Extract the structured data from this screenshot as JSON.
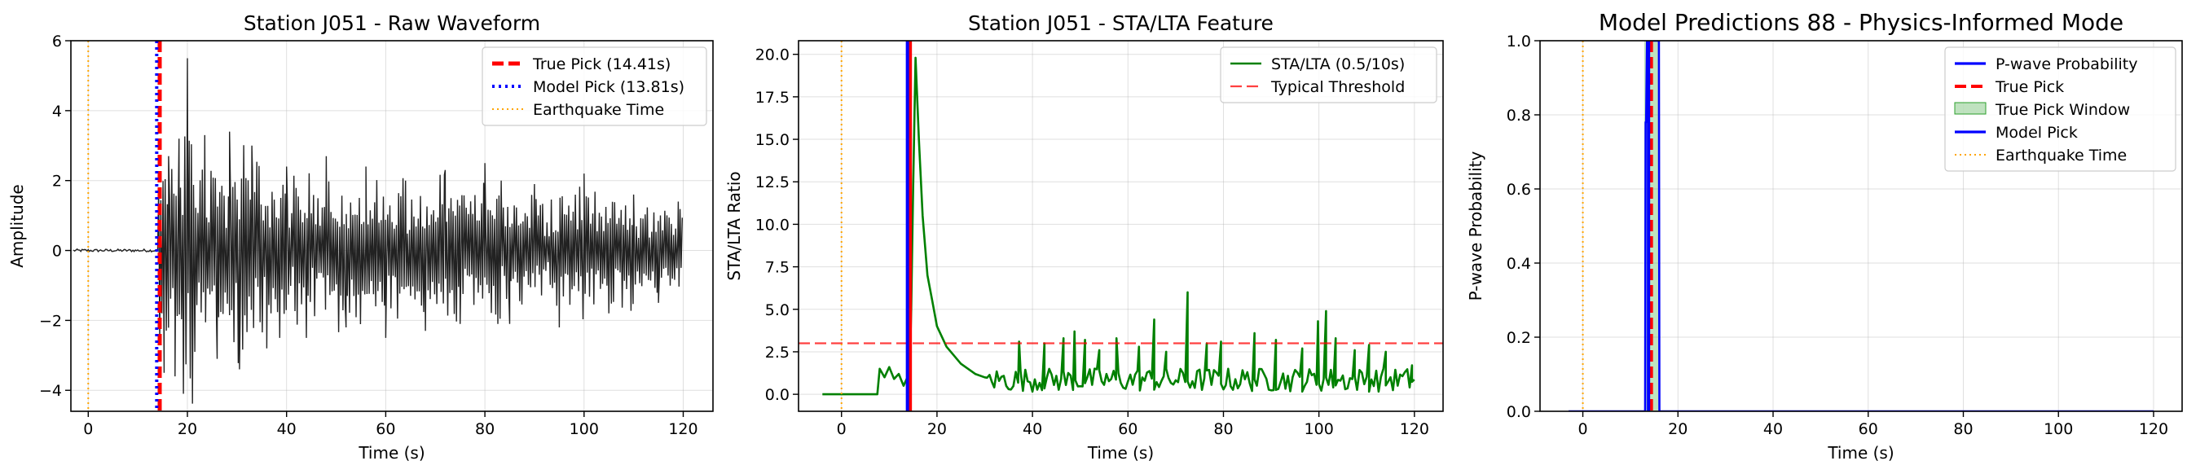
{
  "chart_data": [
    {
      "type": "line",
      "title": "Station J051 - Raw Waveform",
      "xlabel": "Time (s)",
      "ylabel": "Amplitude",
      "xlim": [
        -3.5,
        126
      ],
      "ylim": [
        -4.6,
        6
      ],
      "xticks": [
        0,
        20,
        40,
        60,
        80,
        100,
        120
      ],
      "yticks": [
        -4,
        -2,
        0,
        2,
        4,
        6
      ],
      "xtick_labels": [
        "0",
        "20",
        "40",
        "60",
        "80",
        "100",
        "120"
      ],
      "ytick_labels": [
        "−4",
        "−2",
        "0",
        "2",
        "4",
        "6"
      ],
      "grid": true,
      "legend_position": "top-right",
      "waveform": {
        "name": "",
        "color": "#222222",
        "t_start": -3,
        "t_end": 120,
        "onset": 14.2,
        "noise_amplitude": 0.04,
        "peaks": [
          [
            15.3,
            -3.5
          ],
          [
            16.2,
            2.7
          ],
          [
            17.5,
            -3.6
          ],
          [
            18.3,
            3.2
          ],
          [
            19.2,
            -4.1
          ],
          [
            20.0,
            5.5
          ],
          [
            21.5,
            -2.9
          ],
          [
            23.5,
            3.3
          ],
          [
            26.0,
            -3.1
          ],
          [
            28.5,
            3.4
          ],
          [
            30.5,
            -3.4
          ],
          [
            33.0,
            3.0
          ],
          [
            36.0,
            -2.8
          ],
          [
            40.0,
            2.4
          ],
          [
            44.0,
            -2.5
          ],
          [
            48.0,
            2.7
          ],
          [
            52.0,
            -2.2
          ],
          [
            56.0,
            2.4
          ],
          [
            60.0,
            -2.5
          ],
          [
            64.0,
            2.0
          ],
          [
            68.0,
            -2.3
          ],
          [
            72.0,
            2.3
          ],
          [
            75.0,
            -2.1
          ],
          [
            80.0,
            2.5
          ],
          [
            85.0,
            -2.1
          ],
          [
            90.0,
            1.9
          ],
          [
            95.0,
            -2.2
          ],
          [
            100.0,
            2.2
          ],
          [
            105.0,
            -1.8
          ],
          [
            110.0,
            1.6
          ],
          [
            115.0,
            -1.5
          ],
          [
            119.0,
            1.4
          ]
        ]
      },
      "vlines": [
        {
          "name": "True Pick (14.41s)",
          "x": 14.41,
          "color": "#ff0000",
          "style": "dashed",
          "width": 5
        },
        {
          "name": "Model Pick (13.81s)",
          "x": 13.81,
          "color": "#0000ff",
          "style": "dotted",
          "width": 4
        },
        {
          "name": "Earthquake Time",
          "x": 0.0,
          "color": "#ffa500",
          "style": "dotted-fine",
          "width": 2
        }
      ]
    },
    {
      "type": "line",
      "title": "Station J051 - STA/LTA Feature",
      "xlabel": "Time (s)",
      "ylabel": "STA/LTA Ratio",
      "xlim": [
        -9,
        126
      ],
      "ylim": [
        -1,
        20.8
      ],
      "xticks": [
        0,
        20,
        40,
        60,
        80,
        100,
        120
      ],
      "yticks": [
        0.0,
        2.5,
        5.0,
        7.5,
        10.0,
        12.5,
        15.0,
        17.5,
        20.0
      ],
      "xtick_labels": [
        "0",
        "20",
        "40",
        "60",
        "80",
        "100",
        "120"
      ],
      "ytick_labels": [
        "0.0",
        "2.5",
        "5.0",
        "7.5",
        "10.0",
        "12.5",
        "15.0",
        "17.5",
        "20.0"
      ],
      "grid": true,
      "legend_position": "top-right",
      "series": [
        {
          "name": "STA/LTA (0.5/10s)",
          "color": "#008000",
          "base_x": [
            -4,
            7.5,
            8.0,
            9,
            10,
            11,
            12,
            13,
            13.8,
            14.2,
            14.6,
            15.0,
            15.5,
            16.2,
            17,
            18,
            19,
            20,
            22,
            25,
            28,
            30
          ],
          "base_y": [
            0.0,
            0.0,
            1.5,
            1.0,
            1.6,
            0.9,
            1.2,
            0.5,
            1.0,
            0.4,
            5.0,
            12.0,
            19.8,
            15.0,
            10.5,
            7.0,
            5.5,
            4.0,
            2.8,
            1.8,
            1.2,
            1.0
          ],
          "noise_start": 30,
          "noise_end": 120,
          "spikes": [
            [
              37.2,
              3.1
            ],
            [
              42.5,
              3.0
            ],
            [
              46.5,
              3.3
            ],
            [
              48.8,
              3.7
            ],
            [
              51.0,
              3.2
            ],
            [
              54.0,
              2.6
            ],
            [
              57.6,
              3.3
            ],
            [
              62.3,
              2.8
            ],
            [
              65.5,
              4.4
            ],
            [
              68.0,
              2.5
            ],
            [
              72.5,
              6.0
            ],
            [
              76.5,
              3.0
            ],
            [
              79.5,
              3.1
            ],
            [
              86.5,
              3.6
            ],
            [
              91.0,
              3.2
            ],
            [
              96.5,
              2.7
            ],
            [
              99.8,
              4.3
            ],
            [
              101.5,
              4.9
            ],
            [
              103.5,
              3.3
            ],
            [
              107.5,
              2.6
            ],
            [
              110.5,
              2.9
            ],
            [
              114.0,
              2.5
            ],
            [
              119.5,
              1.7
            ]
          ]
        }
      ],
      "hlines": [
        {
          "name": "Typical Threshold",
          "y": 3.0,
          "color": "#ff0000",
          "style": "dashed",
          "opacity": 0.75
        }
      ],
      "vlines": [
        {
          "name": "",
          "x": 14.41,
          "color": "#ff0000",
          "style": "solid",
          "width": 4
        },
        {
          "name": "",
          "x": 13.81,
          "color": "#0000ff",
          "style": "solid",
          "width": 4
        },
        {
          "name": "",
          "x": 0.0,
          "color": "#ffa500",
          "style": "dotted-fine",
          "width": 2
        }
      ]
    },
    {
      "type": "line",
      "title": "Model Predictions 88 - Physics-Informed Mode",
      "xlabel": "Time (s)",
      "ylabel": "P-wave Probability",
      "xlim": [
        -9,
        126
      ],
      "ylim": [
        0.0,
        1.0
      ],
      "xticks": [
        0,
        20,
        40,
        60,
        80,
        100,
        120
      ],
      "yticks": [
        0.0,
        0.2,
        0.4,
        0.6,
        0.8,
        1.0
      ],
      "xtick_labels": [
        "0",
        "20",
        "40",
        "60",
        "80",
        "100",
        "120"
      ],
      "ytick_labels": [
        "0.0",
        "0.2",
        "0.4",
        "0.6",
        "0.8",
        "1.0"
      ],
      "grid": true,
      "legend_position": "top-right",
      "series": [
        {
          "name": "P-wave Probability",
          "color": "#0000ff",
          "x": [
            -3,
            13.1,
            13.2,
            13.3,
            13.5,
            14.0,
            15.5,
            16.0,
            16.1,
            120
          ],
          "y": [
            0.0,
            0.0,
            0.78,
            0.78,
            1.0,
            1.0,
            1.0,
            1.0,
            0.0,
            0.0
          ]
        }
      ],
      "spans": [
        {
          "name": "True Pick Window",
          "x0": 12.9,
          "x1": 15.9,
          "color": "#2ca02c",
          "opacity": 0.3
        }
      ],
      "vlines": [
        {
          "name": "True Pick",
          "x": 14.41,
          "color": "#ff0000",
          "style": "dashed",
          "width": 4
        },
        {
          "name": "Model Pick",
          "x": 13.81,
          "color": "#0000ff",
          "style": "solid",
          "width": 4
        },
        {
          "name": "Earthquake Time",
          "x": 0.0,
          "color": "#ffa500",
          "style": "dotted-fine",
          "width": 2
        }
      ]
    }
  ]
}
